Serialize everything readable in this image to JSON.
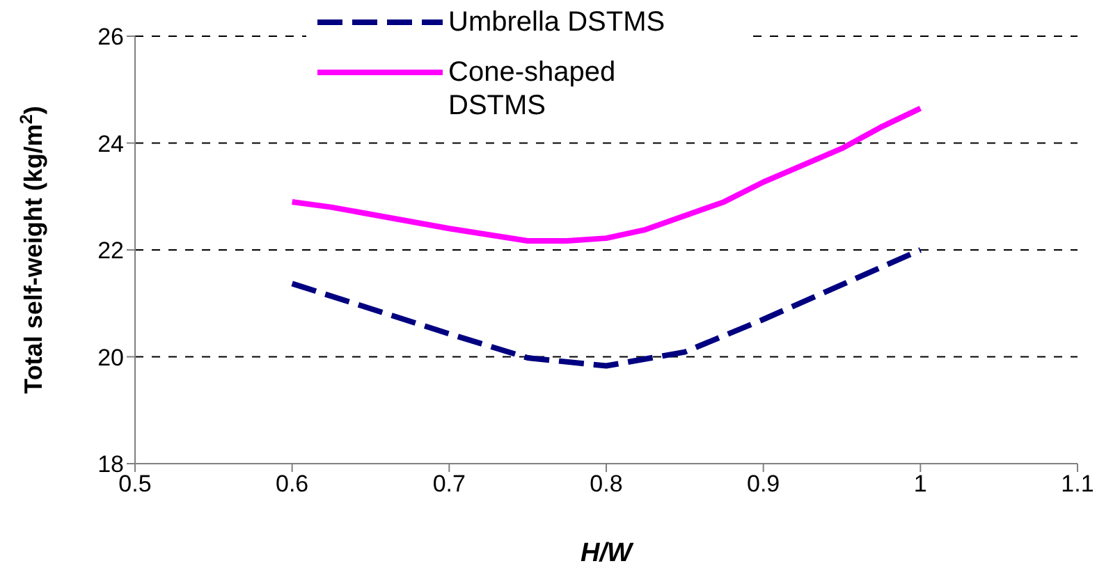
{
  "chart_data": {
    "type": "line",
    "xlabel": "H/W",
    "ylabel": "Total self-weight (kg/m$^{2}$)",
    "xlim": [
      0.5,
      1.1
    ],
    "xticks": [
      0.5,
      0.6,
      0.7,
      0.8,
      0.9,
      1,
      1.1
    ],
    "ylim": [
      18,
      26
    ],
    "yticks": [
      18,
      20,
      22,
      24,
      26
    ],
    "grid": "y",
    "legend": "top",
    "marker": "none",
    "series": [
      {
        "name": "Umbrella DSTMS",
        "color": "#000080",
        "line_style": "dashed",
        "x": [
          0.6,
          0.7,
          0.75,
          0.8,
          0.85,
          0.9,
          1.0
        ],
        "values": [
          21.37,
          20.43,
          19.98,
          19.83,
          20.09,
          20.7,
          22.0
        ]
      },
      {
        "name": "Cone-shaped DSTMS",
        "color": "#ff00ff",
        "line_style": "solid",
        "x": [
          0.6,
          0.625,
          0.7,
          0.75,
          0.775,
          0.8,
          0.825,
          0.875,
          0.9,
          0.95,
          0.975,
          1.0
        ],
        "values": [
          22.9,
          22.8,
          22.4,
          22.17,
          22.17,
          22.22,
          22.38,
          22.9,
          23.27,
          23.9,
          24.3,
          24.65
        ]
      }
    ]
  }
}
